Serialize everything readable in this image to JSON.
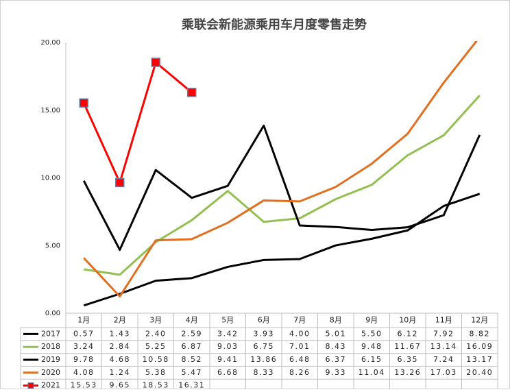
{
  "chart_data": {
    "type": "line",
    "title": "乘联会新能源乘用车月度零售走势",
    "categories": [
      "1月",
      "2月",
      "3月",
      "4月",
      "5月",
      "6月",
      "7月",
      "8月",
      "9月",
      "10月",
      "11月",
      "12月"
    ],
    "series": [
      {
        "name": "2017",
        "color": "#000000",
        "values": [
          0.57,
          1.43,
          2.4,
          2.59,
          3.42,
          3.93,
          4.0,
          5.01,
          5.5,
          6.12,
          7.92,
          8.82
        ],
        "value_labels": [
          "0.57",
          "1.43",
          "2.40",
          "2.59",
          "3.42",
          "3.93",
          "4.00",
          "5.01",
          "5.50",
          "6.12",
          "7.92",
          "8.82"
        ]
      },
      {
        "name": "2018",
        "color": "#92c050",
        "values": [
          3.24,
          2.84,
          5.25,
          6.87,
          9.03,
          6.75,
          7.01,
          8.43,
          9.48,
          11.67,
          13.14,
          16.09
        ],
        "value_labels": [
          "3.24",
          "2.84",
          "5.25",
          "6.87",
          "9.03",
          "6.75",
          "7.01",
          "8.43",
          "9.48",
          "11.67",
          "13.14",
          "16.09"
        ]
      },
      {
        "name": "2019",
        "color": "#000000",
        "values": [
          9.78,
          4.68,
          10.58,
          8.52,
          9.41,
          13.86,
          6.48,
          6.37,
          6.15,
          6.35,
          7.24,
          13.17
        ],
        "value_labels": [
          "9.78",
          "4.68",
          "10.58",
          "8.52",
          "9.41",
          "13.86",
          "6.48",
          "6.37",
          "6.15",
          "6.35",
          "7.24",
          "13.17"
        ]
      },
      {
        "name": "2020",
        "color": "#e07020",
        "values": [
          4.08,
          1.24,
          5.38,
          5.47,
          6.68,
          8.33,
          8.26,
          9.33,
          11.04,
          13.26,
          17.03,
          20.4
        ],
        "value_labels": [
          "4.08",
          "1.24",
          "5.38",
          "5.47",
          "6.68",
          "8.33",
          "8.26",
          "9.33",
          "11.04",
          "13.26",
          "17.03",
          "20.40"
        ]
      },
      {
        "name": "2021",
        "color": "#ff0000",
        "marker": "square",
        "values": [
          15.53,
          9.65,
          18.53,
          16.31,
          null,
          null,
          null,
          null,
          null,
          null,
          null,
          null
        ],
        "value_labels": [
          "15.53",
          "9.65",
          "18.53",
          "16.31",
          null,
          null,
          null,
          null,
          null,
          null,
          null,
          null
        ]
      }
    ],
    "ylim": [
      0,
      20
    ],
    "yticks": [
      {
        "value": 0,
        "label": "0.00"
      },
      {
        "value": 5,
        "label": "5.00"
      },
      {
        "value": 10,
        "label": "10.00"
      },
      {
        "value": 15,
        "label": "15.00"
      },
      {
        "value": 20,
        "label": "20.00"
      }
    ]
  }
}
